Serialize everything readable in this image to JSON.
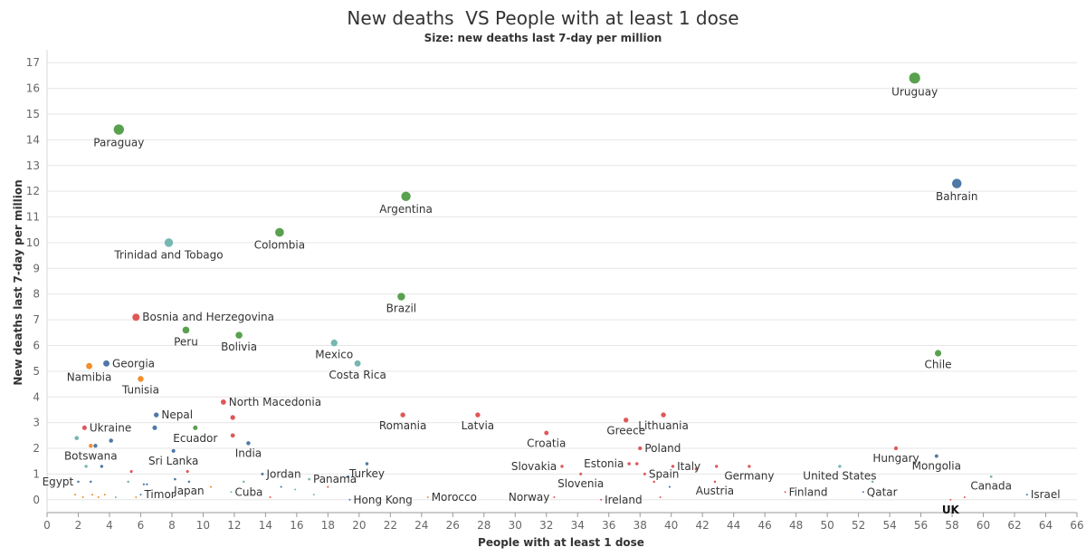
{
  "chart_data": {
    "type": "scatter",
    "title": "New deaths  VS People with at least 1 dose",
    "subtitle": "Size: new deaths last 7-day per million",
    "xlabel": "People with at least 1 dose",
    "ylabel": "New deaths last 7-day per million",
    "xlim": [
      0,
      66
    ],
    "ylim": [
      -0.5,
      17.5
    ],
    "xticks": [
      0,
      2,
      4,
      6,
      8,
      10,
      12,
      14,
      16,
      18,
      20,
      22,
      24,
      26,
      28,
      30,
      32,
      34,
      36,
      38,
      40,
      42,
      44,
      46,
      48,
      50,
      52,
      54,
      56,
      58,
      60,
      62,
      64,
      66
    ],
    "yticks": [
      0,
      1,
      2,
      3,
      4,
      5,
      6,
      7,
      8,
      9,
      10,
      11,
      12,
      13,
      14,
      15,
      16,
      17
    ],
    "colors": {
      "green": "#59a14f",
      "blue": "#4e79a7",
      "teal": "#76b7b2",
      "red": "#e15759",
      "orange": "#f28e2b"
    },
    "points": [
      {
        "label": "Uruguay",
        "x": 55.6,
        "y": 16.4,
        "color": "green",
        "label_pos": "below"
      },
      {
        "label": "Paraguay",
        "x": 4.6,
        "y": 14.4,
        "color": "green",
        "label_pos": "below"
      },
      {
        "label": "Bahrain",
        "x": 58.3,
        "y": 12.3,
        "color": "blue",
        "label_pos": "below"
      },
      {
        "label": "Argentina",
        "x": 23.0,
        "y": 11.8,
        "color": "green",
        "label_pos": "below"
      },
      {
        "label": "Colombia",
        "x": 14.9,
        "y": 10.4,
        "color": "green",
        "label_pos": "below"
      },
      {
        "label": "Trinidad and Tobago",
        "x": 7.8,
        "y": 10.0,
        "color": "teal",
        "label_pos": "below"
      },
      {
        "label": "Brazil",
        "x": 22.7,
        "y": 7.9,
        "color": "green",
        "label_pos": "below"
      },
      {
        "label": "Bosnia and Herzegovina",
        "x": 5.7,
        "y": 7.1,
        "color": "red",
        "label_pos": "right"
      },
      {
        "label": "Peru",
        "x": 8.9,
        "y": 6.6,
        "color": "green",
        "label_pos": "below"
      },
      {
        "label": "Bolivia",
        "x": 12.3,
        "y": 6.4,
        "color": "green",
        "label_pos": "below"
      },
      {
        "label": "Mexico",
        "x": 18.4,
        "y": 6.1,
        "color": "teal",
        "label_pos": "below"
      },
      {
        "label": "Chile",
        "x": 57.1,
        "y": 5.7,
        "color": "green",
        "label_pos": "below"
      },
      {
        "label": "Costa Rica",
        "x": 19.9,
        "y": 5.3,
        "color": "teal",
        "label_pos": "below"
      },
      {
        "label": "Georgia",
        "x": 3.8,
        "y": 5.3,
        "color": "blue",
        "label_pos": "right"
      },
      {
        "label": "Namibia",
        "x": 2.7,
        "y": 5.2,
        "color": "orange",
        "label_pos": "below"
      },
      {
        "label": "Tunisia",
        "x": 6.0,
        "y": 4.7,
        "color": "orange",
        "label_pos": "below"
      },
      {
        "label": "North Macedonia",
        "x": 11.3,
        "y": 3.8,
        "color": "red",
        "label_pos": "right"
      },
      {
        "label": "Nepal",
        "x": 7.0,
        "y": 3.3,
        "color": "blue",
        "label_pos": "right"
      },
      {
        "label": "Romania",
        "x": 22.8,
        "y": 3.3,
        "color": "red",
        "label_pos": "below"
      },
      {
        "label": "Latvia",
        "x": 27.6,
        "y": 3.3,
        "color": "red",
        "label_pos": "below"
      },
      {
        "label": "Lithuania",
        "x": 39.5,
        "y": 3.3,
        "color": "red",
        "label_pos": "below"
      },
      {
        "label": "Greece",
        "x": 37.1,
        "y": 3.1,
        "color": "red",
        "label_pos": "below"
      },
      {
        "label": "Ukraine",
        "x": 2.4,
        "y": 2.8,
        "color": "red",
        "label_pos": "right"
      },
      {
        "label": "",
        "x": 6.9,
        "y": 2.8,
        "color": "blue",
        "label_pos": "none"
      },
      {
        "label": "Ecuador",
        "x": 9.5,
        "y": 2.8,
        "color": "green",
        "label_pos": "below"
      },
      {
        "label": "Croatia",
        "x": 32.0,
        "y": 2.6,
        "color": "red",
        "label_pos": "below"
      },
      {
        "label": "",
        "x": 11.9,
        "y": 3.2,
        "color": "red",
        "label_pos": "none"
      },
      {
        "label": "",
        "x": 11.9,
        "y": 2.5,
        "color": "red",
        "label_pos": "none"
      },
      {
        "label": "India",
        "x": 12.9,
        "y": 2.2,
        "color": "blue",
        "label_pos": "below"
      },
      {
        "label": "Botswana",
        "x": 2.8,
        "y": 2.1,
        "color": "orange",
        "label_pos": "below"
      },
      {
        "label": "",
        "x": 1.9,
        "y": 2.4,
        "color": "teal",
        "label_pos": "none"
      },
      {
        "label": "",
        "x": 4.1,
        "y": 2.3,
        "color": "blue",
        "label_pos": "none"
      },
      {
        "label": "",
        "x": 3.1,
        "y": 2.1,
        "color": "blue",
        "label_pos": "none"
      },
      {
        "label": "Sri Lanka",
        "x": 8.1,
        "y": 1.9,
        "color": "blue",
        "label_pos": "below"
      },
      {
        "label": "Poland",
        "x": 38.0,
        "y": 2.0,
        "color": "red",
        "label_pos": "right"
      },
      {
        "label": "Hungary",
        "x": 54.4,
        "y": 2.0,
        "color": "red",
        "label_pos": "below"
      },
      {
        "label": "Mongolia",
        "x": 57.0,
        "y": 1.7,
        "color": "blue",
        "label_pos": "below"
      },
      {
        "label": "Estonia",
        "x": 37.3,
        "y": 1.4,
        "color": "red",
        "label_pos": "left"
      },
      {
        "label": "",
        "x": 37.8,
        "y": 1.4,
        "color": "red",
        "label_pos": "none"
      },
      {
        "label": "Italy",
        "x": 40.1,
        "y": 1.3,
        "color": "red",
        "label_pos": "right"
      },
      {
        "label": "Turkey",
        "x": 20.5,
        "y": 1.4,
        "color": "blue",
        "label_pos": "below"
      },
      {
        "label": "Slovakia",
        "x": 33.0,
        "y": 1.3,
        "color": "red",
        "label_pos": "left"
      },
      {
        "label": "Germany",
        "x": 45.0,
        "y": 1.3,
        "color": "red",
        "label_pos": "below"
      },
      {
        "label": "",
        "x": 42.9,
        "y": 1.3,
        "color": "red",
        "label_pos": "none"
      },
      {
        "label": "United States",
        "x": 50.8,
        "y": 1.3,
        "color": "teal",
        "label_pos": "below"
      },
      {
        "label": "Jordan",
        "x": 13.8,
        "y": 1.0,
        "color": "blue",
        "label_pos": "right"
      },
      {
        "label": "Slovenia",
        "x": 34.2,
        "y": 1.0,
        "color": "red",
        "label_pos": "below"
      },
      {
        "label": "Spain",
        "x": 38.3,
        "y": 1.0,
        "color": "red",
        "label_pos": "right"
      },
      {
        "label": "",
        "x": 41.6,
        "y": 1.2,
        "color": "red",
        "label_pos": "none"
      },
      {
        "label": "",
        "x": 9.0,
        "y": 1.1,
        "color": "red",
        "label_pos": "none"
      },
      {
        "label": "",
        "x": 5.4,
        "y": 1.1,
        "color": "red",
        "label_pos": "none"
      },
      {
        "label": "",
        "x": 2.5,
        "y": 1.3,
        "color": "teal",
        "label_pos": "none"
      },
      {
        "label": "",
        "x": 3.5,
        "y": 1.3,
        "color": "blue",
        "label_pos": "none"
      },
      {
        "label": "Panama",
        "x": 16.8,
        "y": 0.8,
        "color": "teal",
        "label_pos": "right"
      },
      {
        "label": "",
        "x": 19.3,
        "y": 0.9,
        "color": "blue",
        "label_pos": "none"
      },
      {
        "label": "Japan",
        "x": 9.1,
        "y": 0.7,
        "color": "blue",
        "label_pos": "below"
      },
      {
        "label": "",
        "x": 8.2,
        "y": 0.8,
        "color": "blue",
        "label_pos": "none"
      },
      {
        "label": "",
        "x": 12.6,
        "y": 0.7,
        "color": "teal",
        "label_pos": "none"
      },
      {
        "label": "Egypt",
        "x": 2.0,
        "y": 0.7,
        "color": "blue",
        "label_pos": "left"
      },
      {
        "label": "",
        "x": 2.8,
        "y": 0.7,
        "color": "blue",
        "label_pos": "none"
      },
      {
        "label": "",
        "x": 5.2,
        "y": 0.7,
        "color": "teal",
        "label_pos": "none"
      },
      {
        "label": "",
        "x": 6.2,
        "y": 0.6,
        "color": "blue",
        "label_pos": "none"
      },
      {
        "label": "",
        "x": 6.4,
        "y": 0.6,
        "color": "blue",
        "label_pos": "none"
      },
      {
        "label": "Canada",
        "x": 60.5,
        "y": 0.9,
        "color": "teal",
        "label_pos": "below"
      },
      {
        "label": "",
        "x": 52.9,
        "y": 0.7,
        "color": "teal",
        "label_pos": "none"
      },
      {
        "label": "Austria",
        "x": 42.8,
        "y": 0.7,
        "color": "red",
        "label_pos": "below"
      },
      {
        "label": "",
        "x": 38.9,
        "y": 0.7,
        "color": "red",
        "label_pos": "none"
      },
      {
        "label": "",
        "x": 39.9,
        "y": 0.5,
        "color": "blue",
        "label_pos": "none"
      },
      {
        "label": "",
        "x": 10.5,
        "y": 0.5,
        "color": "orange",
        "label_pos": "none"
      },
      {
        "label": "Cuba",
        "x": 11.8,
        "y": 0.3,
        "color": "teal",
        "label_pos": "right"
      },
      {
        "label": "Timor",
        "x": 6.0,
        "y": 0.2,
        "color": "blue",
        "label_pos": "right"
      },
      {
        "label": "Qatar",
        "x": 52.3,
        "y": 0.3,
        "color": "blue",
        "label_pos": "right"
      },
      {
        "label": "Finland",
        "x": 47.3,
        "y": 0.3,
        "color": "red",
        "label_pos": "right"
      },
      {
        "label": "Hong Kong",
        "x": 19.4,
        "y": 0.0,
        "color": "blue",
        "label_pos": "right"
      },
      {
        "label": "Morocco",
        "x": 24.4,
        "y": 0.1,
        "color": "orange",
        "label_pos": "right"
      },
      {
        "label": "Norway",
        "x": 32.5,
        "y": 0.1,
        "color": "red",
        "label_pos": "left"
      },
      {
        "label": "Ireland",
        "x": 35.5,
        "y": 0.0,
        "color": "red",
        "label_pos": "right"
      },
      {
        "label": "UK",
        "x": 57.9,
        "y": 0.0,
        "color": "red",
        "label_pos": "bold-below"
      },
      {
        "label": "Israel",
        "x": 62.8,
        "y": 0.2,
        "color": "blue",
        "label_pos": "right"
      },
      {
        "label": "",
        "x": 58.8,
        "y": 0.1,
        "color": "red",
        "label_pos": "none"
      },
      {
        "label": "",
        "x": 1.8,
        "y": 0.2,
        "color": "orange",
        "label_pos": "none"
      },
      {
        "label": "",
        "x": 2.3,
        "y": 0.1,
        "color": "orange",
        "label_pos": "none"
      },
      {
        "label": "",
        "x": 2.9,
        "y": 0.2,
        "color": "orange",
        "label_pos": "none"
      },
      {
        "label": "",
        "x": 3.3,
        "y": 0.1,
        "color": "orange",
        "label_pos": "none"
      },
      {
        "label": "",
        "x": 3.7,
        "y": 0.2,
        "color": "orange",
        "label_pos": "none"
      },
      {
        "label": "",
        "x": 4.4,
        "y": 0.1,
        "color": "teal",
        "label_pos": "none"
      },
      {
        "label": "",
        "x": 5.7,
        "y": 0.1,
        "color": "orange",
        "label_pos": "none"
      },
      {
        "label": "",
        "x": 15.0,
        "y": 0.5,
        "color": "blue",
        "label_pos": "none"
      },
      {
        "label": "",
        "x": 15.9,
        "y": 0.4,
        "color": "teal",
        "label_pos": "none"
      },
      {
        "label": "",
        "x": 18.0,
        "y": 0.5,
        "color": "red",
        "label_pos": "none"
      },
      {
        "label": "",
        "x": 14.3,
        "y": 0.1,
        "color": "red",
        "label_pos": "none"
      },
      {
        "label": "",
        "x": 17.1,
        "y": 0.2,
        "color": "teal",
        "label_pos": "none"
      },
      {
        "label": "",
        "x": 39.3,
        "y": 0.1,
        "color": "red",
        "label_pos": "none"
      }
    ]
  }
}
